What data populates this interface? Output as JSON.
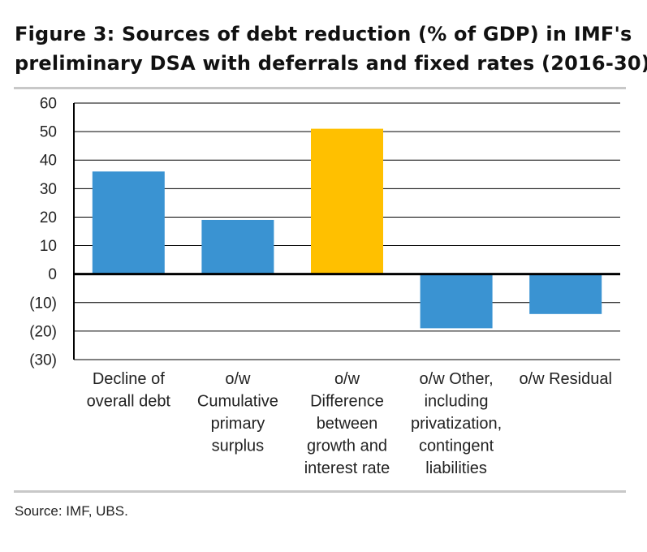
{
  "figure": {
    "title_line1": "Figure 3: Sources of debt reduction (% of GDP) in IMF's",
    "title_line2": "preliminary DSA with deferrals and fixed rates (2016-30)",
    "source": "Source:  IMF, UBS."
  },
  "chart_data": {
    "type": "bar",
    "title": "Figure 3: Sources of debt reduction (% of GDP) in IMF's preliminary DSA with deferrals and fixed rates (2016-30)",
    "xlabel": "",
    "ylabel": "",
    "ylim": [
      -30,
      60
    ],
    "yticks": [
      60,
      50,
      40,
      30,
      20,
      10,
      0,
      -10,
      -20,
      -30
    ],
    "ytick_labels": [
      "60",
      "50",
      "40",
      "30",
      "20",
      "10",
      "0",
      "(10)",
      "(20)",
      "(30)"
    ],
    "grid": true,
    "categories": [
      [
        "Decline of",
        "overall debt"
      ],
      [
        "o/w",
        "Cumulative",
        "primary",
        "surplus"
      ],
      [
        "o/w",
        "Difference",
        "between",
        "growth and",
        "interest rate"
      ],
      [
        "o/w Other,",
        "including",
        "privatization,",
        "contingent",
        "liabilities"
      ],
      [
        "o/w Residual"
      ]
    ],
    "values": [
      36,
      19,
      51,
      -19,
      -14
    ],
    "colors": [
      "#3a93d2",
      "#3a93d2",
      "#ffc000",
      "#3a93d2",
      "#3a93d2"
    ]
  }
}
